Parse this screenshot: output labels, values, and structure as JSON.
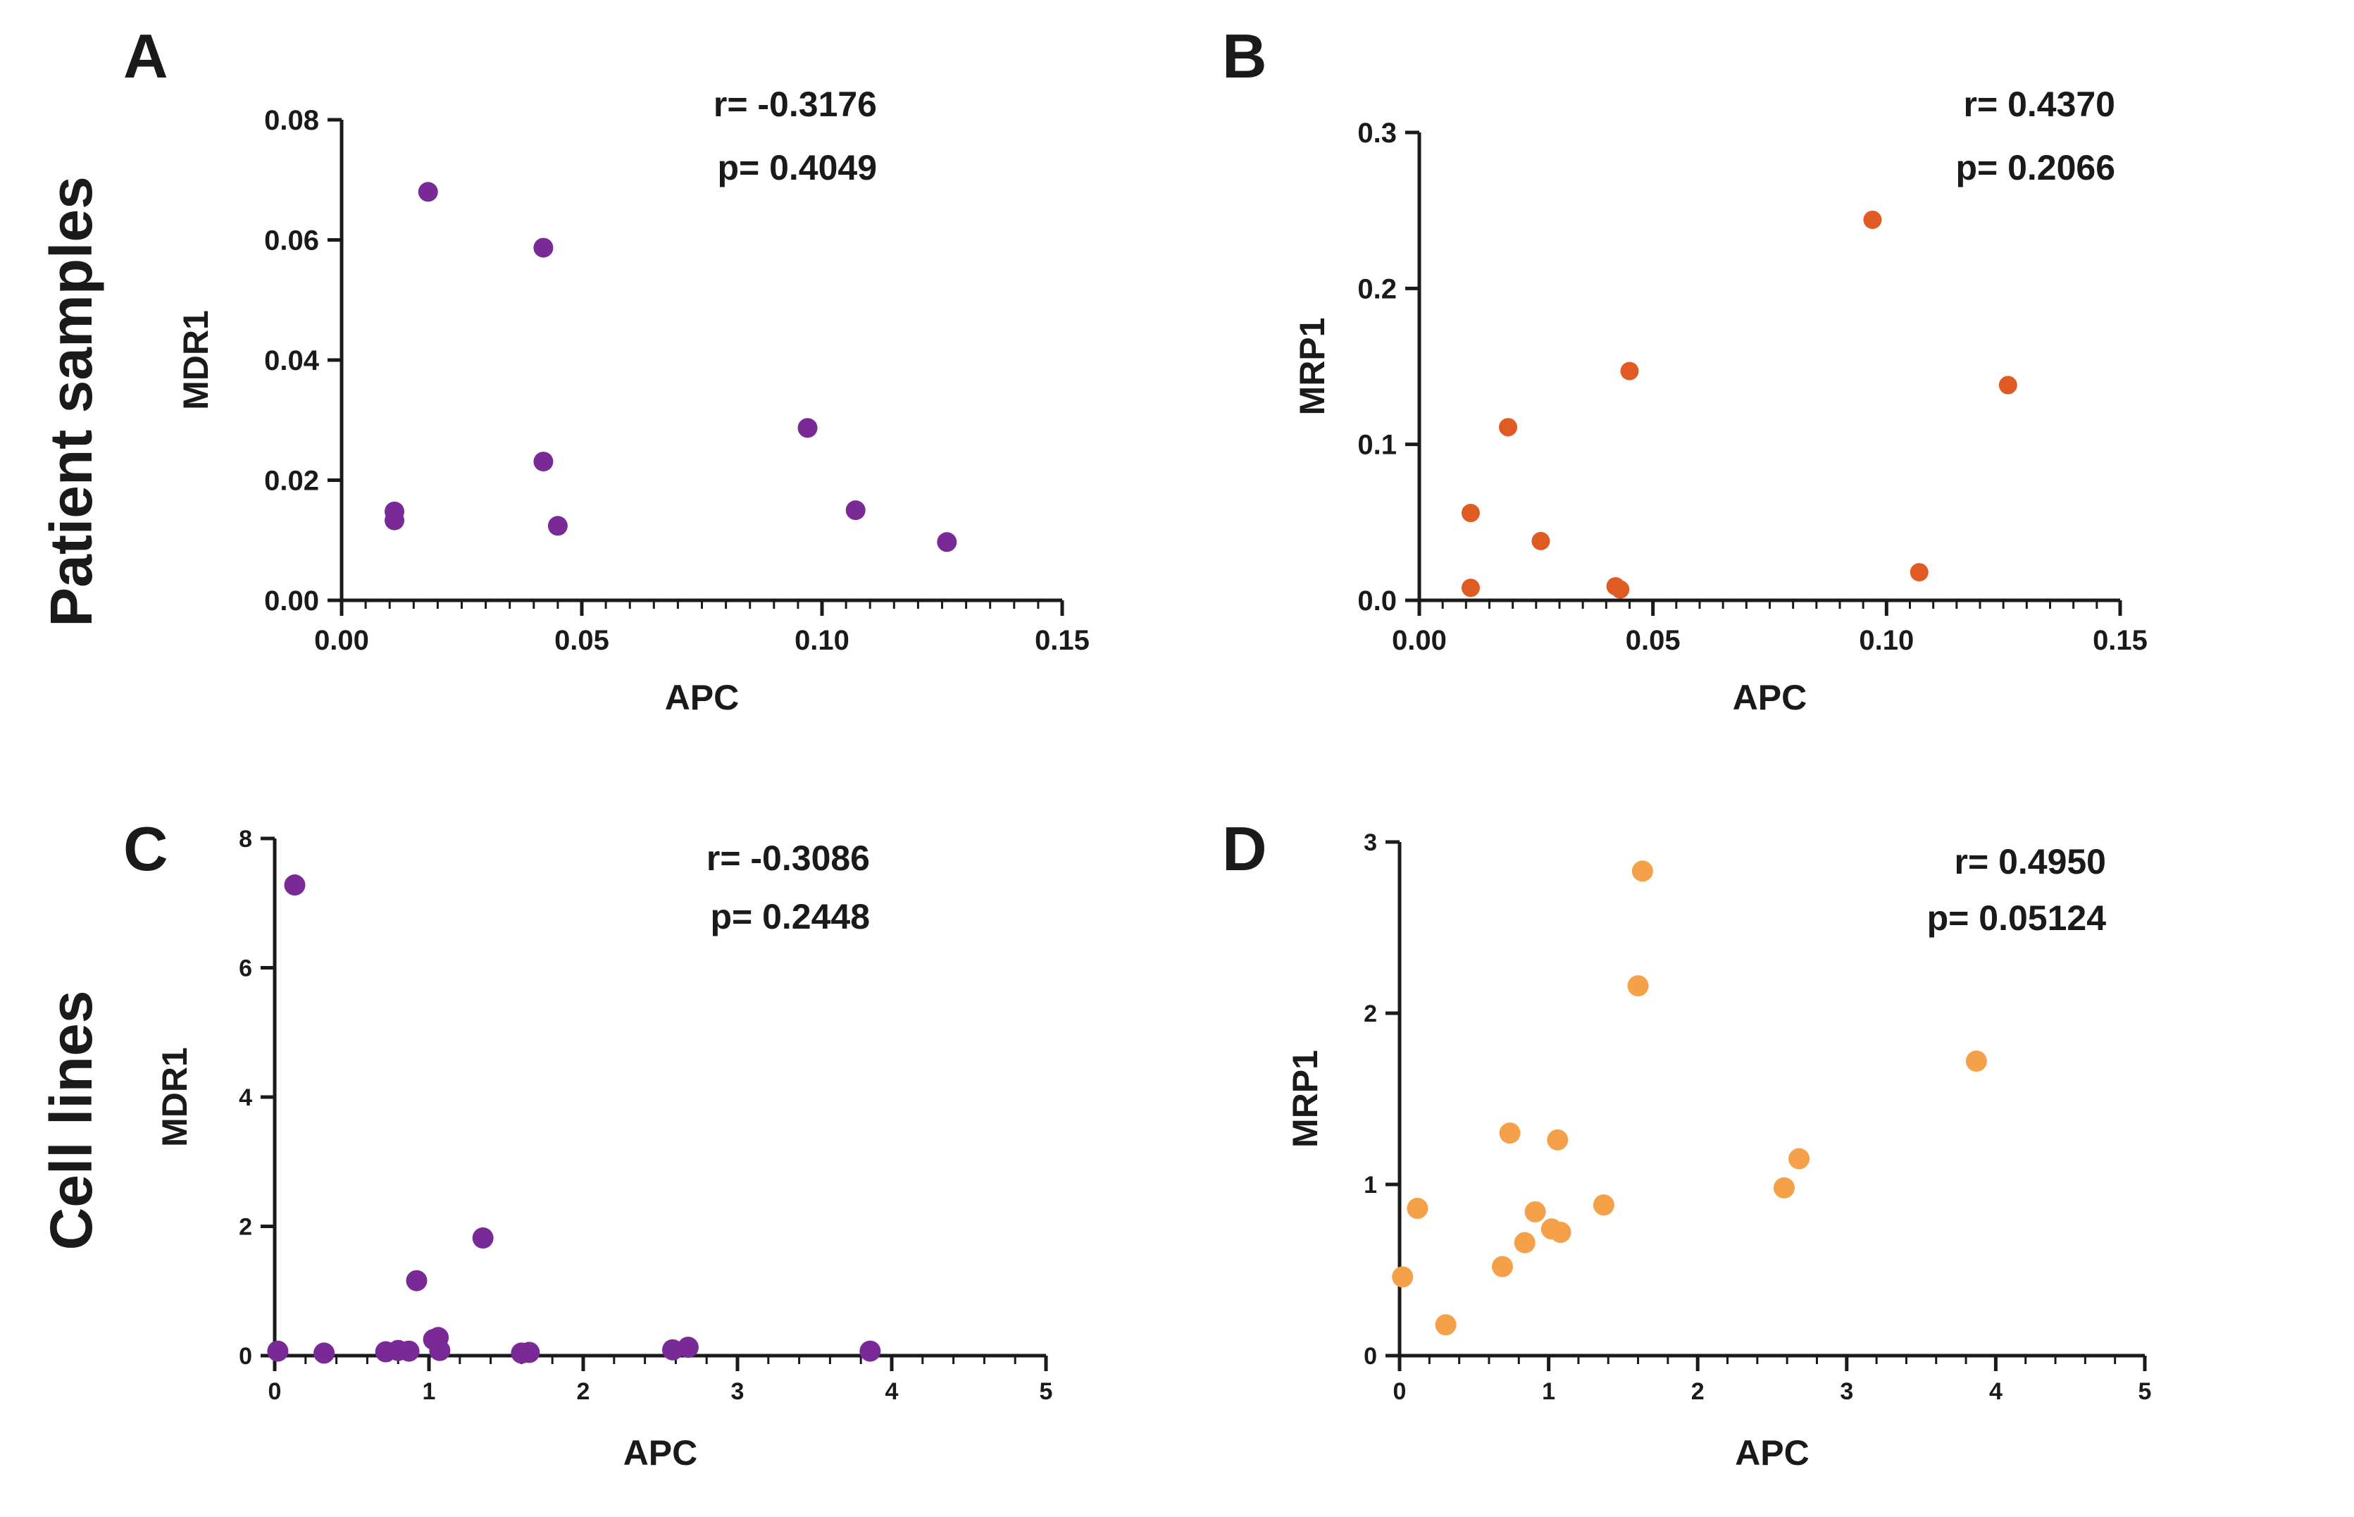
{
  "row_labels": [
    "Patient samples",
    "Cell lines"
  ],
  "chart_data": [
    {
      "panel": "A",
      "type": "scatter",
      "xlabel": "APC",
      "ylabel": "MDR1",
      "xlim": [
        0,
        0.15
      ],
      "ylim": [
        0,
        0.08
      ],
      "xticks": [
        "0.00",
        "0.05",
        "0.10",
        "0.15"
      ],
      "xtick_values": [
        0,
        0.05,
        0.1,
        0.15
      ],
      "yticks": [
        "0.00",
        "0.02",
        "0.04",
        "0.06",
        "0.08"
      ],
      "ytick_values": [
        0,
        0.02,
        0.04,
        0.06,
        0.08
      ],
      "stat_r": "r= -0.3176",
      "stat_p": "p= 0.4049",
      "color": "#7a2a96",
      "points": [
        {
          "x": 0.011,
          "y": 0.0148
        },
        {
          "x": 0.011,
          "y": 0.0133
        },
        {
          "x": 0.018,
          "y": 0.068
        },
        {
          "x": 0.042,
          "y": 0.0587
        },
        {
          "x": 0.042,
          "y": 0.0231
        },
        {
          "x": 0.045,
          "y": 0.0124
        },
        {
          "x": 0.097,
          "y": 0.0287
        },
        {
          "x": 0.107,
          "y": 0.015
        },
        {
          "x": 0.126,
          "y": 0.0097
        }
      ]
    },
    {
      "panel": "B",
      "type": "scatter",
      "xlabel": "APC",
      "ylabel": "MRP1",
      "xlim": [
        0,
        0.15
      ],
      "ylim": [
        0,
        0.3
      ],
      "xticks": [
        "0.00",
        "0.05",
        "0.10",
        "0.15"
      ],
      "xtick_values": [
        0,
        0.05,
        0.1,
        0.15
      ],
      "yticks": [
        "0.0",
        "0.1",
        "0.2",
        "0.3"
      ],
      "ytick_values": [
        0,
        0.1,
        0.2,
        0.3
      ],
      "stat_r": "r= 0.4370",
      "stat_p": "p= 0.2066",
      "color": "#e05a24",
      "points": [
        {
          "x": 0.011,
          "y": 0.056
        },
        {
          "x": 0.011,
          "y": 0.008
        },
        {
          "x": 0.019,
          "y": 0.111
        },
        {
          "x": 0.026,
          "y": 0.038
        },
        {
          "x": 0.042,
          "y": 0.009
        },
        {
          "x": 0.043,
          "y": 0.007
        },
        {
          "x": 0.045,
          "y": 0.147
        },
        {
          "x": 0.097,
          "y": 0.244
        },
        {
          "x": 0.107,
          "y": 0.018
        },
        {
          "x": 0.126,
          "y": 0.138
        }
      ]
    },
    {
      "panel": "C",
      "type": "scatter",
      "xlabel": "APC",
      "ylabel": "MDR1",
      "xlim": [
        0,
        5
      ],
      "ylim": [
        0,
        8
      ],
      "xticks": [
        "0",
        "1",
        "2",
        "3",
        "4",
        "5"
      ],
      "xtick_values": [
        0,
        1,
        2,
        3,
        4,
        5
      ],
      "yticks": [
        "0",
        "2",
        "4",
        "6",
        "8"
      ],
      "ytick_values": [
        0,
        2,
        4,
        6,
        8
      ],
      "stat_r": "r= -0.3086",
      "stat_p": "p= 0.2448",
      "color": "#7a2a96",
      "points": [
        {
          "x": 0.02,
          "y": 0.07
        },
        {
          "x": 0.13,
          "y": 7.28
        },
        {
          "x": 0.32,
          "y": 0.04
        },
        {
          "x": 0.72,
          "y": 0.06
        },
        {
          "x": 0.8,
          "y": 0.08
        },
        {
          "x": 0.87,
          "y": 0.07
        },
        {
          "x": 0.92,
          "y": 1.16
        },
        {
          "x": 1.03,
          "y": 0.25
        },
        {
          "x": 1.06,
          "y": 0.28
        },
        {
          "x": 1.07,
          "y": 0.08
        },
        {
          "x": 1.35,
          "y": 1.82
        },
        {
          "x": 1.6,
          "y": 0.04
        },
        {
          "x": 1.65,
          "y": 0.05
        },
        {
          "x": 2.58,
          "y": 0.09
        },
        {
          "x": 2.68,
          "y": 0.13
        },
        {
          "x": 3.86,
          "y": 0.07
        }
      ]
    },
    {
      "panel": "D",
      "type": "scatter",
      "xlabel": "APC",
      "ylabel": "MRP1",
      "xlim": [
        0,
        5
      ],
      "ylim": [
        0,
        3
      ],
      "xticks": [
        "0",
        "1",
        "2",
        "3",
        "4",
        "5"
      ],
      "xtick_values": [
        0,
        1,
        2,
        3,
        4,
        5
      ],
      "yticks": [
        "0",
        "1",
        "2",
        "3"
      ],
      "ytick_values": [
        0,
        1,
        2,
        3
      ],
      "stat_r": "r= 0.4950",
      "stat_p": "p= 0.05124",
      "color": "#f5a14a",
      "points": [
        {
          "x": 0.02,
          "y": 0.46
        },
        {
          "x": 0.12,
          "y": 0.86
        },
        {
          "x": 0.31,
          "y": 0.18
        },
        {
          "x": 0.69,
          "y": 0.52
        },
        {
          "x": 0.74,
          "y": 1.3
        },
        {
          "x": 0.84,
          "y": 0.66
        },
        {
          "x": 0.91,
          "y": 0.84
        },
        {
          "x": 1.02,
          "y": 0.74
        },
        {
          "x": 1.06,
          "y": 1.26
        },
        {
          "x": 1.08,
          "y": 0.72
        },
        {
          "x": 1.37,
          "y": 0.88
        },
        {
          "x": 1.6,
          "y": 2.16
        },
        {
          "x": 1.63,
          "y": 2.83
        },
        {
          "x": 2.58,
          "y": 0.98
        },
        {
          "x": 2.68,
          "y": 1.15
        },
        {
          "x": 3.87,
          "y": 1.72
        }
      ]
    }
  ]
}
